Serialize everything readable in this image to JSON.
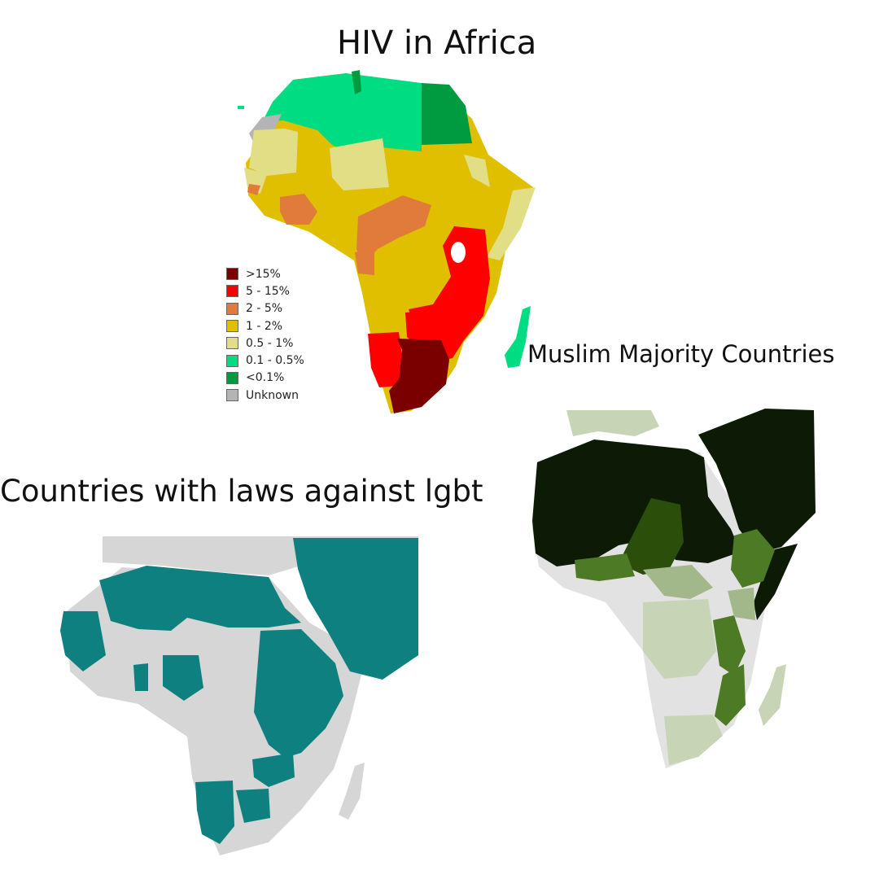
{
  "maps": {
    "hiv": {
      "title": "HIV in Africa",
      "legend": [
        {
          "label": ">15%",
          "color": "#7a0000"
        },
        {
          "label": "5 - 15%",
          "color": "#ff0000"
        },
        {
          "label": "2 - 5%",
          "color": "#e07b3c"
        },
        {
          "label": "1 - 2%",
          "color": "#dfbf00"
        },
        {
          "label": "0.5 - 1%",
          "color": "#e2de85"
        },
        {
          "label": "0.1 - 0.5%",
          "color": "#00dc82"
        },
        {
          "label": "<0.1%",
          "color": "#009a40"
        },
        {
          "label": "Unknown",
          "color": "#b4b4b4"
        }
      ]
    },
    "muslim": {
      "title": "Muslim Majority Countries",
      "colors": {
        "majority": "#0c1a06",
        "high": "#2b4f0a",
        "medium": "#4d7a24",
        "moderate": "#a3b88a",
        "low": "#c8d4b6",
        "none": "#e2e2e2"
      }
    },
    "lgbt": {
      "title": "Countries with laws against lgbt",
      "colors": {
        "laws": "#0e8080",
        "no_laws": "#d6d6d6"
      }
    }
  }
}
